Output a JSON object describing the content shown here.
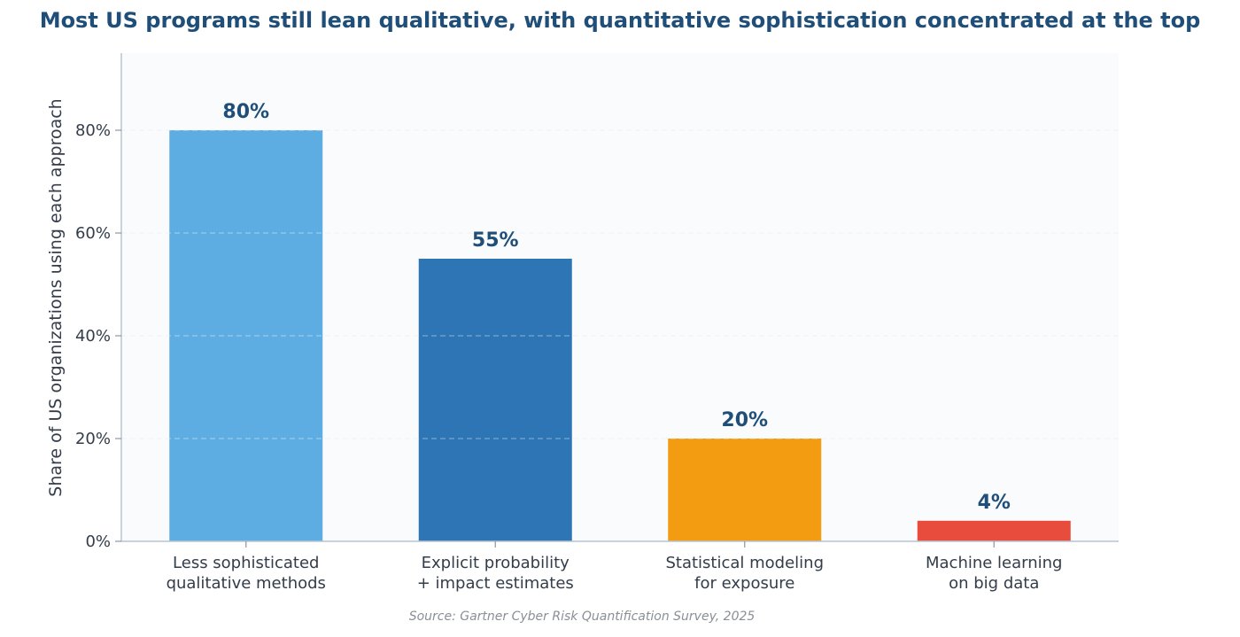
{
  "chart_data": {
    "type": "bar",
    "title": "Most US programs still lean qualitative, with quantitative sophistication concentrated at the top",
    "xlabel": "",
    "ylabel": "Share of US organizations using each approach",
    "ylim": [
      0,
      95
    ],
    "yticks": [
      0,
      20,
      40,
      60,
      80
    ],
    "ytick_labels": [
      "0%",
      "20%",
      "40%",
      "60%",
      "80%"
    ],
    "grid": true,
    "categories": [
      [
        "Less sophisticated",
        "qualitative methods"
      ],
      [
        "Explicit probability",
        "+ impact estimates"
      ],
      [
        "Statistical modeling",
        "for exposure"
      ],
      [
        "Machine learning",
        "on big data"
      ]
    ],
    "values": [
      80,
      55,
      20,
      4
    ],
    "value_labels": [
      "80%",
      "55%",
      "20%",
      "4%"
    ],
    "colors": [
      "#5dade2",
      "#2e75b6",
      "#f39c12",
      "#e74c3c"
    ],
    "source": "Source: Gartner Cyber Risk Quantification Survey, 2025"
  }
}
